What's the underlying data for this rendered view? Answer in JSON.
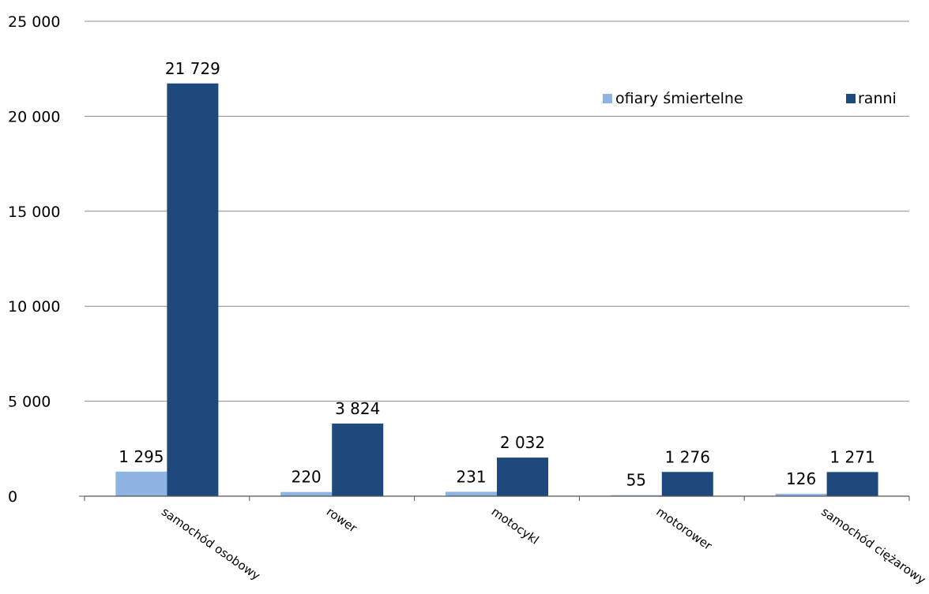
{
  "chart_data": {
    "type": "bar",
    "categories": [
      "samochód osobowy",
      "rower",
      "motocykl",
      "motorower",
      "samochód ciężarowy"
    ],
    "series": [
      {
        "name": "ofiary śmiertelne",
        "values": [
          1295,
          220,
          231,
          55,
          126
        ],
        "labels": [
          "1 295",
          "220",
          "231",
          "55",
          "126"
        ],
        "color": "#8db4e2"
      },
      {
        "name": "ranni",
        "values": [
          21729,
          3824,
          2032,
          1276,
          1271
        ],
        "labels": [
          "21 729",
          "3 824",
          "2 032",
          "1 276",
          "1 271"
        ],
        "color": "#1f497d"
      }
    ],
    "ylim": [
      0,
      25000
    ],
    "yticks": [
      0,
      5000,
      10000,
      15000,
      20000,
      25000
    ],
    "ytick_labels": [
      "0",
      "5 000",
      "10 000",
      "15 000",
      "20 000",
      "25 000"
    ],
    "grid": true,
    "legend_position": "top-right"
  }
}
